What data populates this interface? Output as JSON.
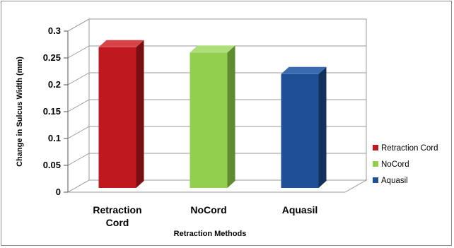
{
  "chart_data": {
    "type": "bar",
    "title": "",
    "xlabel": "Retraction Methods",
    "ylabel": "Change in Sulcus Width (mm)",
    "ylim": [
      0,
      0.3
    ],
    "yticks": [
      "0",
      "0.05",
      "0.1",
      "0.15",
      "0.2",
      "0.25",
      "0.3"
    ],
    "categories": [
      [
        "Retraction",
        "Cord"
      ],
      [
        "NoCord"
      ],
      [
        "Aquasil"
      ]
    ],
    "values": [
      0.27,
      0.26,
      0.22
    ],
    "colors": [
      "#c0181f",
      "#92cf4f",
      "#1f4f96"
    ],
    "shades": [
      "#7a0f13",
      "#5e8c2e",
      "#14305c"
    ],
    "tops": [
      "#d94449",
      "#aede7a",
      "#3a6bb0"
    ],
    "grid": true,
    "legend": {
      "placement": "right",
      "entries": [
        "Retraction Cord",
        "NoCord",
        "Aquasil"
      ]
    }
  }
}
